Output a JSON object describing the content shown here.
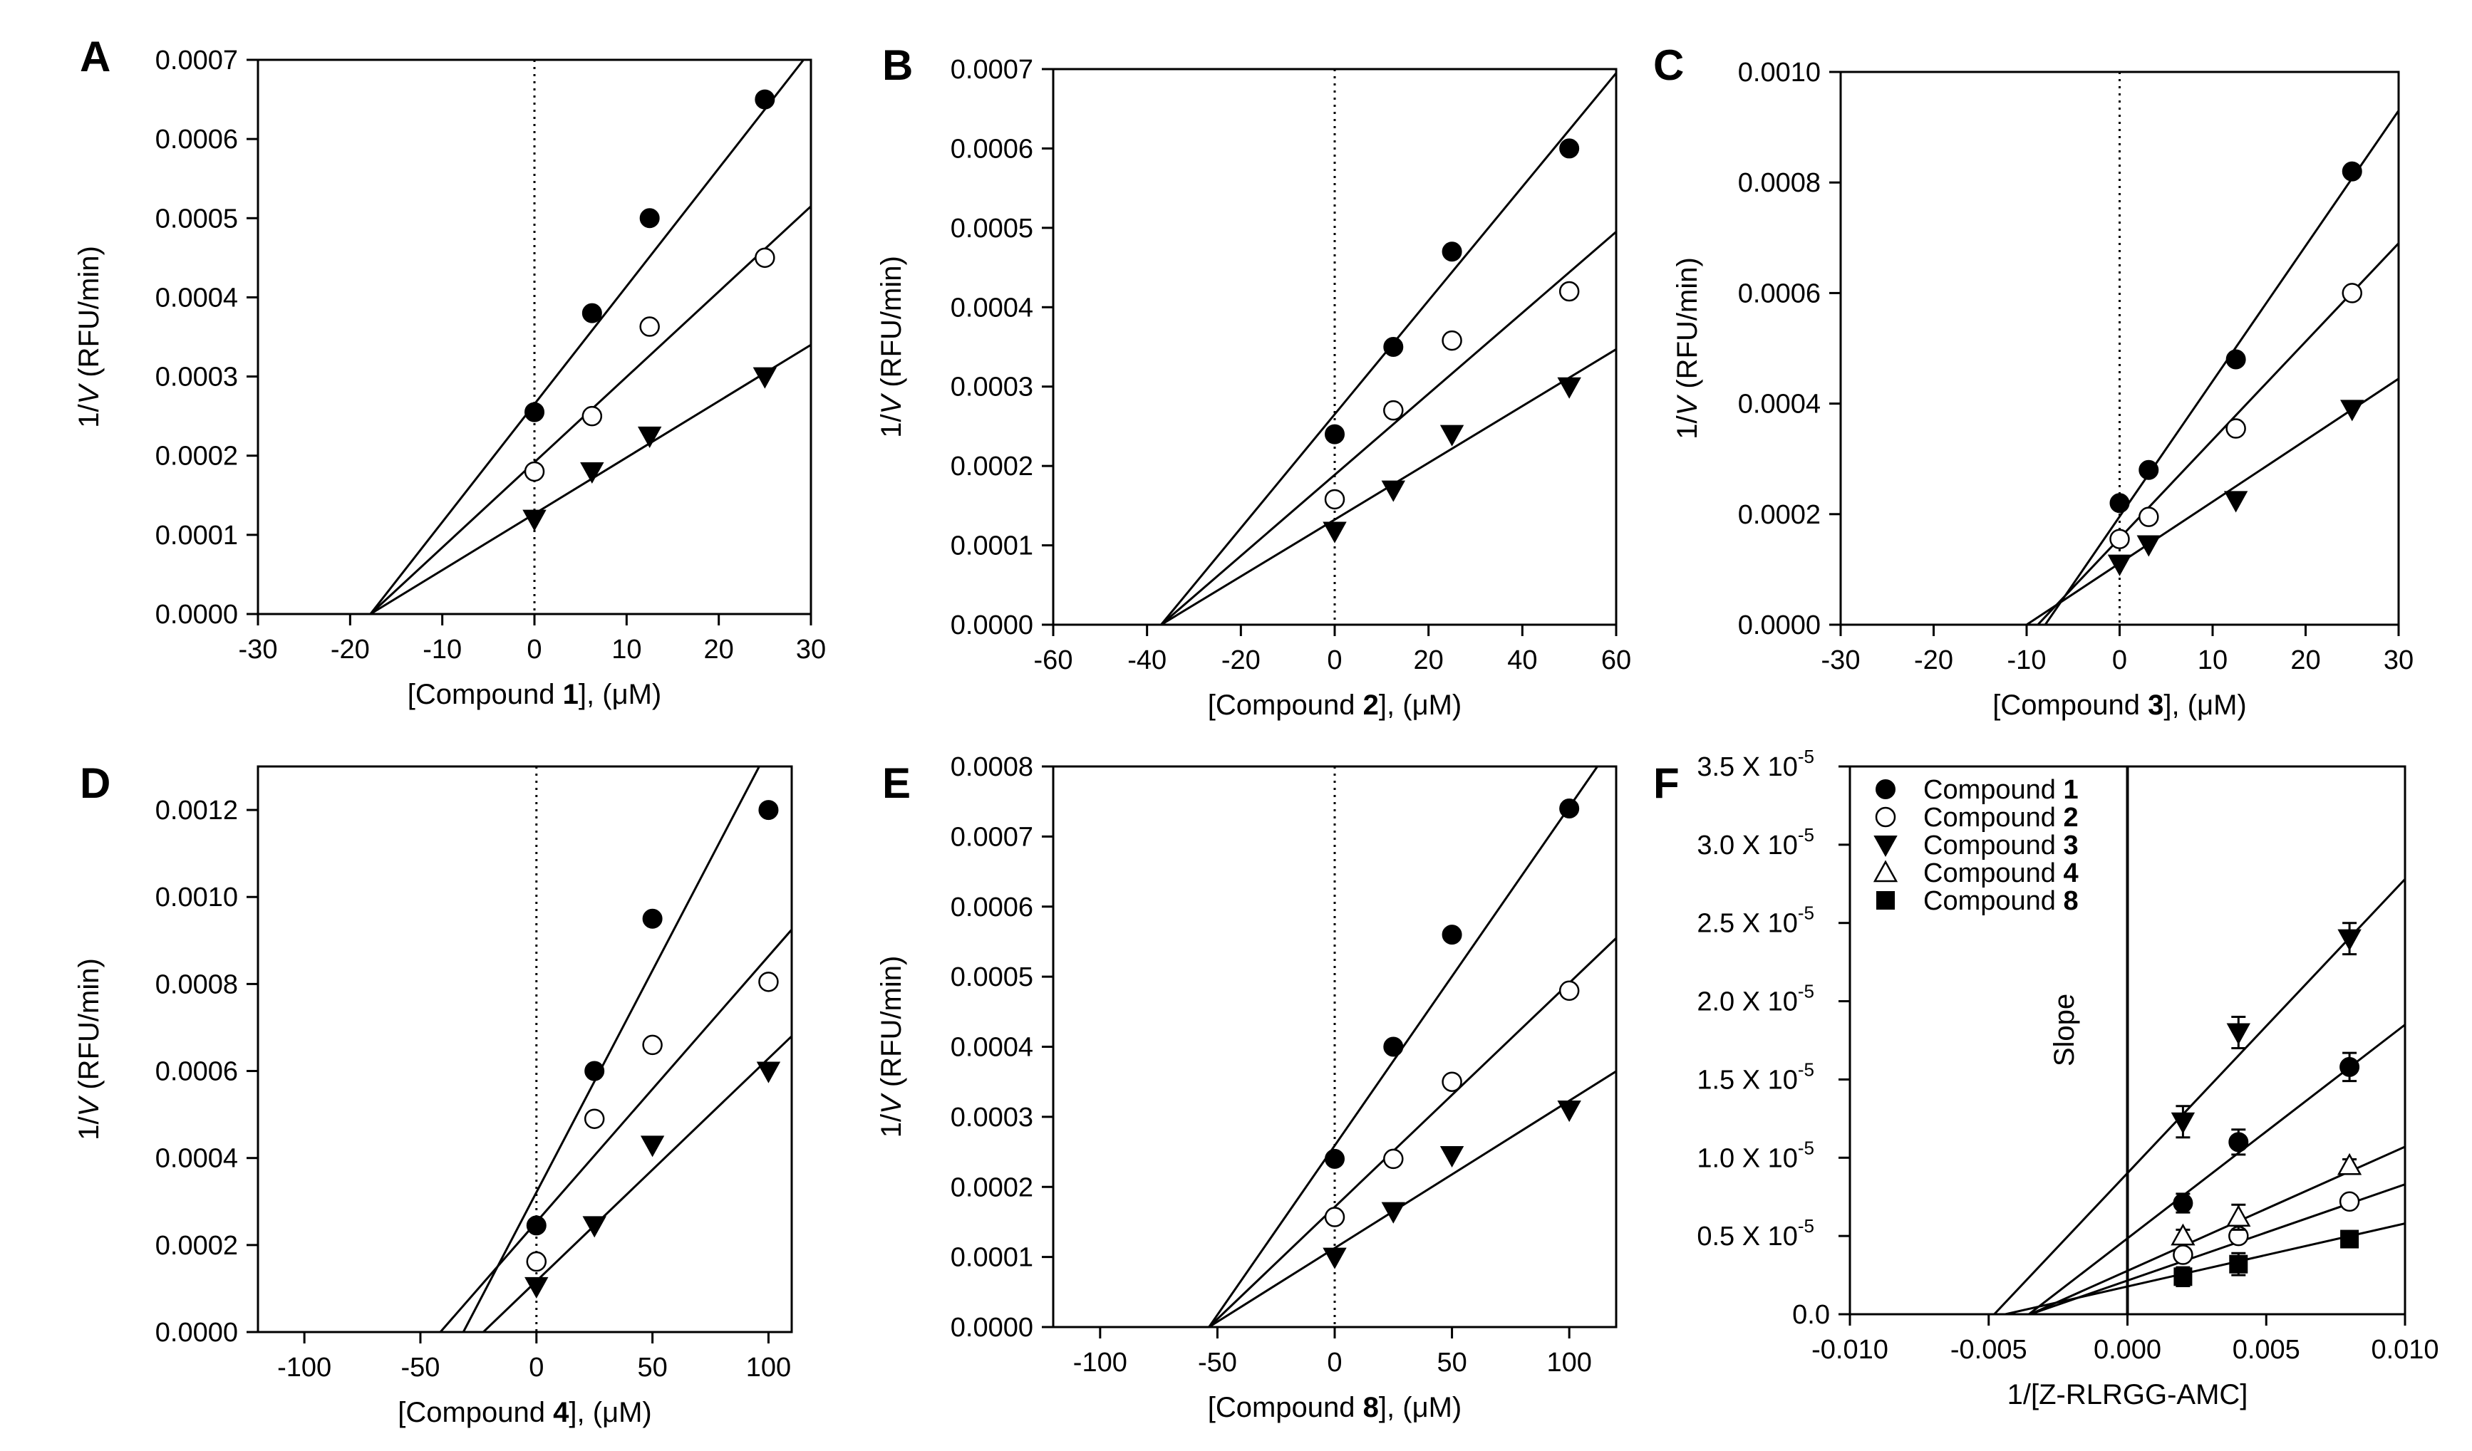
{
  "chart_data": [
    {
      "panel": "A",
      "type": "scatter",
      "xlabel_pre": "[Compound ",
      "xlabel_num": "1",
      "xlabel_post": "], (μM)",
      "ylabel_pre": "1/",
      "ylabel_var": "V",
      "ylabel_post": " (RFU/min)",
      "xlim": [
        -30,
        30
      ],
      "ylim": [
        0,
        0.0007
      ],
      "xticks": [
        -30,
        -20,
        -10,
        0,
        10,
        20,
        30
      ],
      "xtick_labels": [
        "-30",
        "-20",
        "-10",
        "0",
        "10",
        "20",
        "30"
      ],
      "yticks": [
        0,
        0.0001,
        0.0002,
        0.0003,
        0.0004,
        0.0005,
        0.0006,
        0.0007
      ],
      "ytick_labels": [
        "0.0000",
        "0.0001",
        "0.0002",
        "0.0003",
        "0.0004",
        "0.0005",
        "0.0006",
        "0.0007"
      ],
      "zero_line": "dotted",
      "series": [
        {
          "marker": "filled-circle",
          "x": [
            0,
            6.25,
            12.5,
            25
          ],
          "y": [
            0.000255,
            0.00038,
            0.0005,
            0.00065
          ],
          "fit": [
            [
              -17.8,
              0
            ],
            [
              29.2,
              0.0007
            ]
          ]
        },
        {
          "marker": "open-circle",
          "x": [
            0,
            6.25,
            12.5,
            25
          ],
          "y": [
            0.00018,
            0.00025,
            0.000363,
            0.00045
          ],
          "fit": [
            [
              -17.8,
              0
            ],
            [
              30,
              0.000515
            ]
          ]
        },
        {
          "marker": "filled-triangle-down",
          "x": [
            0,
            6.25,
            12.5,
            25
          ],
          "y": [
            0.00012,
            0.00018,
            0.000225,
            0.0003
          ],
          "fit": [
            [
              -17.8,
              0
            ],
            [
              30,
              0.00034
            ]
          ]
        }
      ]
    },
    {
      "panel": "B",
      "type": "scatter",
      "xlabel_pre": "[Compound ",
      "xlabel_num": "2",
      "xlabel_post": "], (μM)",
      "ylabel_pre": "1/",
      "ylabel_var": "V",
      "ylabel_post": " (RFU/min)",
      "xlim": [
        -60,
        60
      ],
      "ylim": [
        0,
        0.0007
      ],
      "xticks": [
        -60,
        -40,
        -20,
        0,
        20,
        40,
        60
      ],
      "xtick_labels": [
        "-60",
        "-40",
        "-20",
        "0",
        "20",
        "40",
        "60"
      ],
      "yticks": [
        0,
        0.0001,
        0.0002,
        0.0003,
        0.0004,
        0.0005,
        0.0006,
        0.0007
      ],
      "ytick_labels": [
        "0.0000",
        "0.0001",
        "0.0002",
        "0.0003",
        "0.0004",
        "0.0005",
        "0.0006",
        "0.0007"
      ],
      "zero_line": "dotted",
      "series": [
        {
          "marker": "filled-circle",
          "x": [
            0,
            12.5,
            25,
            50
          ],
          "y": [
            0.00024,
            0.00035,
            0.00047,
            0.0006
          ],
          "fit": [
            [
              -37,
              0
            ],
            [
              60,
              0.000695
            ]
          ]
        },
        {
          "marker": "open-circle",
          "x": [
            0,
            12.5,
            25,
            50
          ],
          "y": [
            0.000158,
            0.00027,
            0.000358,
            0.00042
          ],
          "fit": [
            [
              -37,
              0
            ],
            [
              60,
              0.000495
            ]
          ]
        },
        {
          "marker": "filled-triangle-down",
          "x": [
            0,
            12.5,
            25,
            50
          ],
          "y": [
            0.000118,
            0.00017,
            0.00024,
            0.0003
          ],
          "fit": [
            [
              -37,
              0
            ],
            [
              60,
              0.000347
            ]
          ]
        }
      ]
    },
    {
      "panel": "C",
      "type": "scatter",
      "xlabel_pre": "[Compound ",
      "xlabel_num": "3",
      "xlabel_post": "], (μM)",
      "ylabel_pre": "1/",
      "ylabel_var": "V",
      "ylabel_post": " (RFU/min)",
      "xlim": [
        -30,
        30
      ],
      "ylim": [
        0,
        0.001
      ],
      "xticks": [
        -30,
        -20,
        -10,
        0,
        10,
        20,
        30
      ],
      "xtick_labels": [
        "-30",
        "-20",
        "-10",
        "0",
        "10",
        "20",
        "30"
      ],
      "yticks": [
        0,
        0.0002,
        0.0004,
        0.0006,
        0.0008,
        0.001
      ],
      "ytick_labels": [
        "0.0000",
        "0.0002",
        "0.0004",
        "0.0006",
        "0.0008",
        "0.0010"
      ],
      "zero_line": "dotted",
      "series": [
        {
          "marker": "filled-circle",
          "x": [
            0,
            3.125,
            12.5,
            25
          ],
          "y": [
            0.00022,
            0.00028,
            0.00048,
            0.00082
          ],
          "fit": [
            [
              -8,
              0
            ],
            [
              30,
              0.00093
            ]
          ]
        },
        {
          "marker": "open-circle",
          "x": [
            0,
            3.125,
            12.5,
            25
          ],
          "y": [
            0.000155,
            0.000195,
            0.000355,
            0.0006
          ],
          "fit": [
            [
              -8.8,
              0
            ],
            [
              30,
              0.00069
            ]
          ]
        },
        {
          "marker": "filled-triangle-down",
          "x": [
            0,
            3.125,
            12.5,
            25
          ],
          "y": [
            0.00011,
            0.000145,
            0.000225,
            0.00039
          ],
          "fit": [
            [
              -10,
              0
            ],
            [
              30,
              0.000445
            ]
          ]
        }
      ]
    },
    {
      "panel": "D",
      "type": "scatter",
      "xlabel_pre": "[Compound ",
      "xlabel_num": "4",
      "xlabel_post": "], (μM)",
      "ylabel_pre": "1/",
      "ylabel_var": "V",
      "ylabel_post": " (RFU/min)",
      "xlim": [
        -120,
        110
      ],
      "ylim": [
        0,
        0.0013
      ],
      "xticks": [
        -100,
        -50,
        0,
        50,
        100
      ],
      "xtick_labels": [
        "-100",
        "-50",
        "0",
        "50",
        "100"
      ],
      "yticks": [
        0,
        0.0002,
        0.0004,
        0.0006,
        0.0008,
        0.001,
        0.0012
      ],
      "ytick_labels": [
        "0.0000",
        "0.0002",
        "0.0004",
        "0.0006",
        "0.0008",
        "0.0010",
        "0.0012"
      ],
      "zero_line": "dotted",
      "series": [
        {
          "marker": "filled-circle",
          "x": [
            0,
            25,
            50,
            100
          ],
          "y": [
            0.000245,
            0.0006,
            0.00095,
            0.0012
          ],
          "fit": [
            [
              -31.5,
              0
            ],
            [
              96,
              0.0013
            ]
          ]
        },
        {
          "marker": "open-circle",
          "x": [
            0,
            25,
            50,
            100
          ],
          "y": [
            0.000162,
            0.00049,
            0.00066,
            0.000805
          ],
          "fit": [
            [
              -41.4,
              0
            ],
            [
              110,
              0.000925
            ]
          ]
        },
        {
          "marker": "filled-triangle-down",
          "x": [
            0,
            25,
            50,
            100
          ],
          "y": [
            0.000105,
            0.000245,
            0.00043,
            0.0006
          ],
          "fit": [
            [
              -22.9,
              0
            ],
            [
              110,
              0.00068
            ]
          ]
        }
      ]
    },
    {
      "panel": "E",
      "type": "scatter",
      "xlabel_pre": "[Compound ",
      "xlabel_num": "8",
      "xlabel_post": "], (μM)",
      "ylabel_pre": "1/",
      "ylabel_var": "V",
      "ylabel_post": " (RFU/min)",
      "xlim": [
        -120,
        120
      ],
      "ylim": [
        0,
        0.0008
      ],
      "xticks": [
        -100,
        -50,
        0,
        50,
        100
      ],
      "xtick_labels": [
        "-100",
        "-50",
        "0",
        "50",
        "100"
      ],
      "yticks": [
        0,
        0.0001,
        0.0002,
        0.0003,
        0.0004,
        0.0005,
        0.0006,
        0.0007,
        0.0008
      ],
      "ytick_labels": [
        "0.0000",
        "0.0001",
        "0.0002",
        "0.0003",
        "0.0004",
        "0.0005",
        "0.0006",
        "0.0007",
        "0.0008"
      ],
      "zero_line": "dotted",
      "series": [
        {
          "marker": "filled-circle",
          "x": [
            0,
            25,
            50,
            100
          ],
          "y": [
            0.00024,
            0.0004,
            0.00056,
            0.00074
          ],
          "fit": [
            [
              -53.6,
              0
            ],
            [
              112,
              0.0008
            ]
          ]
        },
        {
          "marker": "open-circle",
          "x": [
            0,
            25,
            50,
            100
          ],
          "y": [
            0.000157,
            0.00024,
            0.00035,
            0.00048
          ],
          "fit": [
            [
              -53.6,
              0
            ],
            [
              120,
              0.000555
            ]
          ]
        },
        {
          "marker": "filled-triangle-down",
          "x": [
            0,
            25,
            50,
            100
          ],
          "y": [
            0.0001,
            0.000165,
            0.000245,
            0.00031
          ],
          "fit": [
            [
              -53.6,
              0
            ],
            [
              120,
              0.000365
            ]
          ]
        }
      ]
    },
    {
      "panel": "F",
      "type": "scatter",
      "xlabel": "1/[Z-RLRGG-AMC]",
      "ylabel": "Slope",
      "xlim": [
        -0.01,
        0.01
      ],
      "ylim": [
        0,
        3.5e-05
      ],
      "xticks": [
        -0.01,
        -0.005,
        0,
        0.005,
        0.01
      ],
      "xtick_labels": [
        "-0.010",
        "-0.005",
        "0.000",
        "0.005",
        "0.010"
      ],
      "yticks": [
        0,
        5e-06,
        1e-05,
        1.5e-05,
        2e-05,
        2.5e-05,
        3e-05,
        3.5e-05
      ],
      "ytick_labels": [
        "0.0",
        "0.5 X 10",
        "1.0 X 10",
        "1.5 X 10",
        "2.0 X 10",
        "2.5 X 10",
        "3.0 X 10",
        "3.5 X 10"
      ],
      "ytick_exponent": "-5",
      "zero_line": "solid",
      "legend": {
        "placement": "top-left",
        "entries": [
          {
            "marker": "filled-circle",
            "text": "Compound ",
            "num": "1"
          },
          {
            "marker": "open-circle",
            "text": "Compound ",
            "num": "2"
          },
          {
            "marker": "filled-triangle-down",
            "text": "Compound ",
            "num": "3"
          },
          {
            "marker": "open-triangle-up",
            "text": "Compound ",
            "num": "4"
          },
          {
            "marker": "filled-square",
            "text": "Compound ",
            "num": "8"
          }
        ]
      },
      "series": [
        {
          "name": "Compound 1",
          "marker": "filled-circle",
          "x": [
            0.002,
            0.004,
            0.008
          ],
          "y": [
            7.1e-06,
            1.1e-05,
            1.58e-05
          ],
          "err": [
            6e-07,
            8e-07,
            9e-07
          ],
          "fit": [
            [
              -0.00355,
              0
            ],
            [
              0.01,
              1.85e-05
            ]
          ]
        },
        {
          "name": "Compound 2",
          "marker": "open-circle",
          "x": [
            0.002,
            0.004,
            0.008
          ],
          "y": [
            3.8e-06,
            5e-06,
            7.2e-06
          ],
          "err": [
            3e-07,
            3e-07,
            3e-07
          ],
          "fit": [
            [
              -0.0035,
              0
            ],
            [
              0.01,
              8.3e-06
            ]
          ]
        },
        {
          "name": "Compound 3",
          "marker": "filled-triangle-down",
          "x": [
            0.002,
            0.004,
            0.008
          ],
          "y": [
            1.23e-05,
            1.8e-05,
            2.4e-05
          ],
          "err": [
            1e-06,
            1e-06,
            1e-06
          ],
          "fit": [
            [
              -0.0048,
              0
            ],
            [
              0.01,
              2.78e-05
            ]
          ]
        },
        {
          "name": "Compound 4",
          "marker": "open-triangle-up",
          "x": [
            0.002,
            0.004,
            0.008
          ],
          "y": [
            5e-06,
            6.2e-06,
            9.5e-06
          ],
          "err": [
            4e-07,
            8e-07,
            4e-07
          ],
          "fit": [
            [
              -0.0035,
              0
            ],
            [
              0.01,
              1.07e-05
            ]
          ]
        },
        {
          "name": "Compound 8",
          "marker": "filled-square",
          "x": [
            0.002,
            0.004,
            0.008
          ],
          "y": [
            2.4e-06,
            3.2e-06,
            4.8e-06
          ],
          "err": [
            6e-07,
            7e-07,
            5e-07
          ],
          "fit": [
            [
              -0.0044,
              0
            ],
            [
              0.01,
              5.8e-06
            ]
          ]
        }
      ]
    }
  ]
}
